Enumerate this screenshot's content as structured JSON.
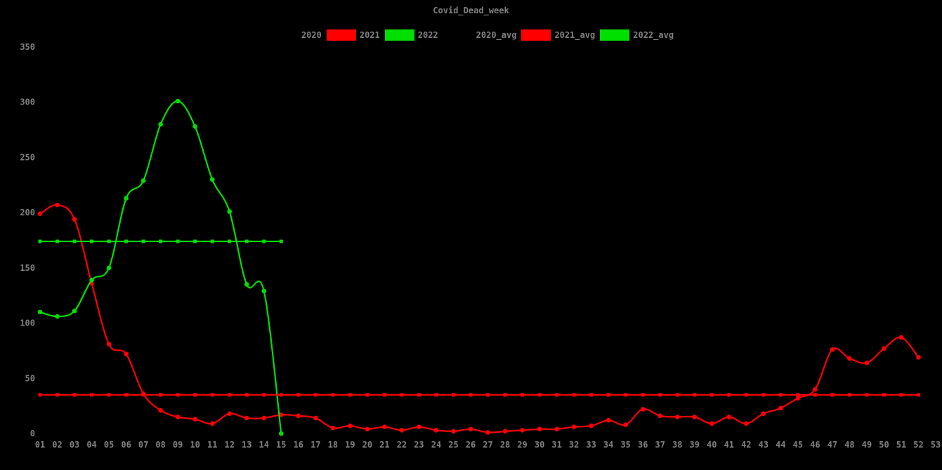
{
  "title": "Covid_Dead_week",
  "colors": {
    "background": "#000000",
    "label": "#808080",
    "series_2020": "#000000",
    "series_2021": "#ff0000",
    "series_2022": "#00e000"
  },
  "legend": {
    "items": [
      {
        "label": "2020",
        "color": "#000000"
      },
      {
        "label": "2021",
        "color": "#ff0000"
      },
      {
        "label": "2022",
        "color": "#00e000"
      },
      {
        "label": "2020_avg",
        "color": "#000000"
      },
      {
        "label": "2021_avg",
        "color": "#ff0000"
      },
      {
        "label": "2022_avg",
        "color": "#00e000"
      }
    ]
  },
  "chart_data": {
    "type": "line",
    "title": "Covid_Dead_week",
    "xlabel": "",
    "ylabel": "",
    "grid": false,
    "legend_position": "top-center",
    "x_axis": {
      "unit": "week",
      "tick_labels": [
        "01",
        "02",
        "03",
        "04",
        "05",
        "06",
        "07",
        "08",
        "09",
        "10",
        "11",
        "12",
        "13",
        "14",
        "15",
        "16",
        "17",
        "18",
        "19",
        "20",
        "21",
        "22",
        "23",
        "24",
        "25",
        "26",
        "27",
        "28",
        "29",
        "30",
        "31",
        "32",
        "33",
        "34",
        "35",
        "36",
        "37",
        "38",
        "39",
        "40",
        "41",
        "42",
        "43",
        "44",
        "45",
        "46",
        "47",
        "48",
        "49",
        "50",
        "51",
        "52",
        "53"
      ]
    },
    "y_axis": {
      "ticks": [
        0,
        50,
        100,
        150,
        200,
        250,
        300,
        350
      ],
      "range": [
        0,
        350
      ]
    },
    "series": [
      {
        "name": "2020",
        "color": "#000000",
        "visible": false,
        "values": []
      },
      {
        "name": "2021",
        "color": "#ff0000",
        "marker": "circle",
        "start_week": 1,
        "values": [
          199,
          207,
          194,
          136,
          81,
          72,
          36,
          21,
          15,
          13,
          9,
          18,
          14,
          14,
          17,
          16,
          14,
          5,
          7,
          4,
          6,
          3,
          6,
          3,
          2,
          4,
          1,
          2,
          3,
          4,
          4,
          6,
          7,
          12,
          8,
          22,
          16,
          15,
          15,
          9,
          15,
          9,
          18,
          23,
          32,
          40,
          76,
          68,
          64,
          77,
          87,
          69
        ]
      },
      {
        "name": "2022",
        "color": "#00e000",
        "marker": "circle",
        "start_week": 1,
        "values": [
          110,
          106,
          111,
          139,
          150,
          213,
          229,
          280,
          301,
          278,
          230,
          201,
          135,
          129,
          0
        ]
      },
      {
        "name": "2020_avg",
        "color": "#000000",
        "role": "average",
        "visible": false
      },
      {
        "name": "2021_avg",
        "color": "#ff0000",
        "role": "average",
        "marker": "square",
        "value": 35,
        "week_range": [
          1,
          52
        ]
      },
      {
        "name": "2022_avg",
        "color": "#00e000",
        "role": "average",
        "marker": "square",
        "value": 174,
        "week_range": [
          1,
          15
        ]
      }
    ]
  }
}
